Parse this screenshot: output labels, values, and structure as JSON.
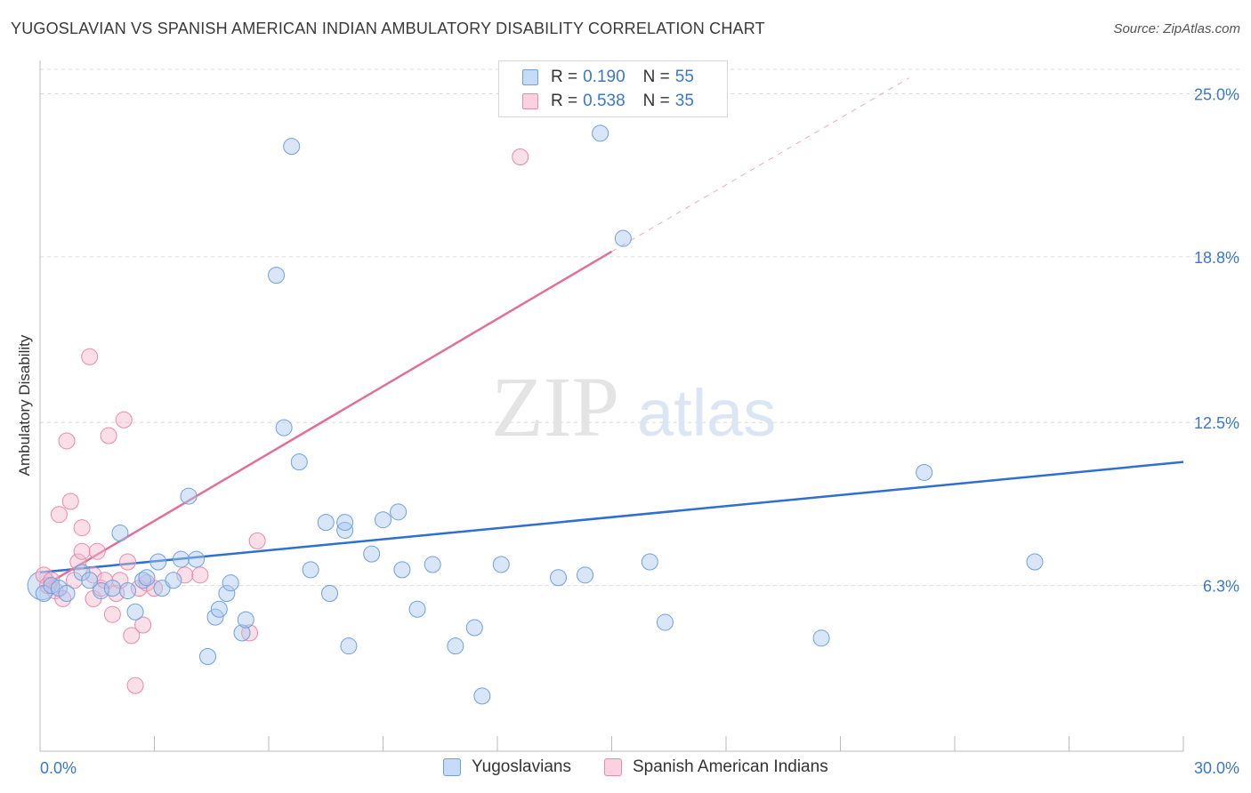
{
  "title": "YUGOSLAVIAN VS SPANISH AMERICAN INDIAN AMBULATORY DISABILITY CORRELATION CHART",
  "source": "Source: ZipAtlas.com",
  "watermark": {
    "zip": "ZIP",
    "atlas": "atlas"
  },
  "legend": {
    "rows": [
      {
        "r_label": "R =",
        "r_value": "0.190",
        "n_label": "N =",
        "n_value": "55",
        "color": "#a8c8f0"
      },
      {
        "r_label": "R =",
        "r_value": "0.538",
        "n_label": "N =",
        "n_value": "35",
        "color": "#f5b8cb"
      }
    ]
  },
  "bottom_legend": [
    {
      "label": "Yugoslavians",
      "color": "#a8c8f0"
    },
    {
      "label": "Spanish American Indians",
      "color": "#f5b8cb"
    }
  ],
  "chart_data": {
    "type": "scatter",
    "title": "YUGOSLAVIAN VS SPANISH AMERICAN INDIAN AMBULATORY DISABILITY CORRELATION CHART",
    "xlabel": "",
    "ylabel": "Ambulatory Disability",
    "xlim": [
      0,
      30
    ],
    "ylim": [
      0,
      26.2
    ],
    "x_tick_labels": [
      "0.0%",
      "30.0%"
    ],
    "y_ticks": [
      6.3,
      12.5,
      18.8,
      25.0
    ],
    "y_tick_labels": [
      "6.3%",
      "12.5%",
      "18.8%",
      "25.0%"
    ],
    "grid": true,
    "legend_position": "top-center",
    "series": [
      {
        "name": "Yugoslavians",
        "color": "#a8c8f0",
        "stroke": "#6fa0dc",
        "trend_color": "#2f6fcf",
        "trend": {
          "x": [
            0,
            30
          ],
          "y": [
            6.8,
            11.0
          ]
        },
        "points": [
          [
            0.1,
            6.0
          ],
          [
            0.3,
            6.3
          ],
          [
            0.5,
            6.2
          ],
          [
            0.7,
            6.0
          ],
          [
            1.1,
            6.8
          ],
          [
            1.3,
            6.5
          ],
          [
            1.6,
            6.1
          ],
          [
            1.9,
            6.2
          ],
          [
            2.1,
            8.3
          ],
          [
            2.3,
            6.1
          ],
          [
            2.5,
            5.3
          ],
          [
            2.7,
            6.5
          ],
          [
            2.8,
            6.6
          ],
          [
            3.1,
            7.2
          ],
          [
            3.2,
            6.2
          ],
          [
            3.5,
            6.5
          ],
          [
            3.7,
            7.3
          ],
          [
            3.9,
            9.7
          ],
          [
            4.1,
            7.3
          ],
          [
            4.4,
            3.6
          ],
          [
            4.6,
            5.1
          ],
          [
            4.7,
            5.4
          ],
          [
            4.9,
            6.0
          ],
          [
            5.0,
            6.4
          ],
          [
            5.3,
            4.5
          ],
          [
            5.4,
            5.0
          ],
          [
            6.2,
            18.1
          ],
          [
            6.4,
            12.3
          ],
          [
            6.6,
            23.0
          ],
          [
            6.8,
            11.0
          ],
          [
            7.1,
            6.9
          ],
          [
            7.5,
            8.7
          ],
          [
            7.6,
            6.0
          ],
          [
            8.0,
            8.4
          ],
          [
            8.1,
            4.0
          ],
          [
            8.0,
            8.7
          ],
          [
            8.7,
            7.5
          ],
          [
            9.0,
            8.8
          ],
          [
            9.4,
            9.1
          ],
          [
            9.5,
            6.9
          ],
          [
            9.9,
            5.4
          ],
          [
            10.3,
            7.1
          ],
          [
            10.9,
            4.0
          ],
          [
            11.4,
            4.7
          ],
          [
            11.6,
            2.1
          ],
          [
            12.1,
            7.1
          ],
          [
            13.6,
            6.6
          ],
          [
            14.3,
            6.7
          ],
          [
            14.7,
            23.5
          ],
          [
            15.3,
            19.5
          ],
          [
            16.0,
            7.2
          ],
          [
            16.4,
            4.9
          ],
          [
            20.5,
            4.3
          ],
          [
            23.2,
            10.6
          ],
          [
            26.1,
            7.2
          ]
        ]
      },
      {
        "name": "Spanish American Indians",
        "color": "#f5b8cb",
        "stroke": "#e98aa8",
        "trend_color": "#e0709a",
        "trend": {
          "x": [
            0,
            15.0
          ],
          "y": [
            6.2,
            19.0
          ]
        },
        "trend_dashed": {
          "x": [
            15.0,
            22.8
          ],
          "y": [
            19.0,
            25.6
          ]
        },
        "points": [
          [
            0.1,
            6.7
          ],
          [
            0.2,
            6.3
          ],
          [
            0.3,
            6.5
          ],
          [
            0.4,
            6.1
          ],
          [
            0.5,
            9.0
          ],
          [
            0.6,
            5.8
          ],
          [
            0.7,
            11.8
          ],
          [
            0.8,
            9.5
          ],
          [
            0.9,
            6.5
          ],
          [
            1.0,
            7.2
          ],
          [
            1.1,
            8.5
          ],
          [
            1.1,
            7.6
          ],
          [
            1.3,
            15.0
          ],
          [
            1.4,
            5.8
          ],
          [
            1.4,
            6.7
          ],
          [
            1.5,
            7.6
          ],
          [
            1.6,
            6.2
          ],
          [
            1.7,
            6.5
          ],
          [
            1.8,
            12.0
          ],
          [
            1.9,
            5.2
          ],
          [
            2.0,
            6.0
          ],
          [
            2.1,
            6.5
          ],
          [
            2.2,
            12.6
          ],
          [
            2.3,
            7.2
          ],
          [
            2.4,
            4.4
          ],
          [
            2.5,
            2.5
          ],
          [
            2.6,
            6.2
          ],
          [
            2.7,
            4.8
          ],
          [
            2.8,
            6.4
          ],
          [
            3.0,
            6.2
          ],
          [
            3.8,
            6.7
          ],
          [
            4.2,
            6.7
          ],
          [
            5.5,
            4.5
          ],
          [
            5.7,
            8.0
          ],
          [
            12.6,
            22.6
          ]
        ]
      }
    ]
  }
}
